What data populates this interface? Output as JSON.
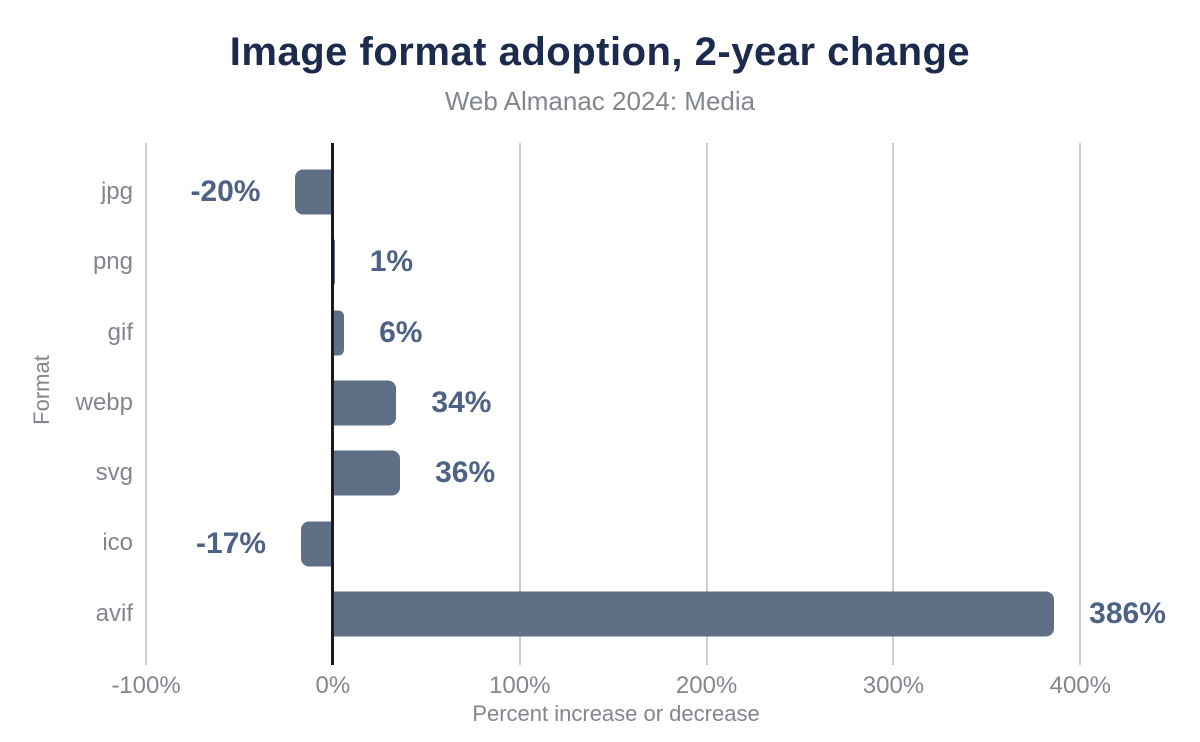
{
  "colors": {
    "title": "#1c2b4d",
    "muted_text": "#82868d",
    "bar": "#5f7086",
    "value_label": "#4e6285",
    "gridline": "#cccccc",
    "zero_line": "#1b1b1e"
  },
  "chart_data": {
    "type": "bar",
    "orientation": "horizontal",
    "title": "Image format adoption, 2-year change",
    "subtitle": "Web Almanac 2024: Media",
    "xlabel": "Percent increase or decrease",
    "ylabel": "Format",
    "categories": [
      "jpg",
      "png",
      "gif",
      "webp",
      "svg",
      "ico",
      "avif"
    ],
    "values": [
      -20,
      1,
      6,
      34,
      36,
      -17,
      386
    ],
    "value_labels": [
      "-20%",
      "1%",
      "6%",
      "34%",
      "36%",
      "-17%",
      "386%"
    ],
    "xlim": [
      -100,
      448
    ],
    "xticks": [
      -100,
      0,
      100,
      200,
      300,
      400
    ],
    "xtick_labels": [
      "-100%",
      "0%",
      "100%",
      "200%",
      "300%",
      "400%"
    ],
    "grid": "vertical-gridlines-on",
    "legend": "none"
  }
}
